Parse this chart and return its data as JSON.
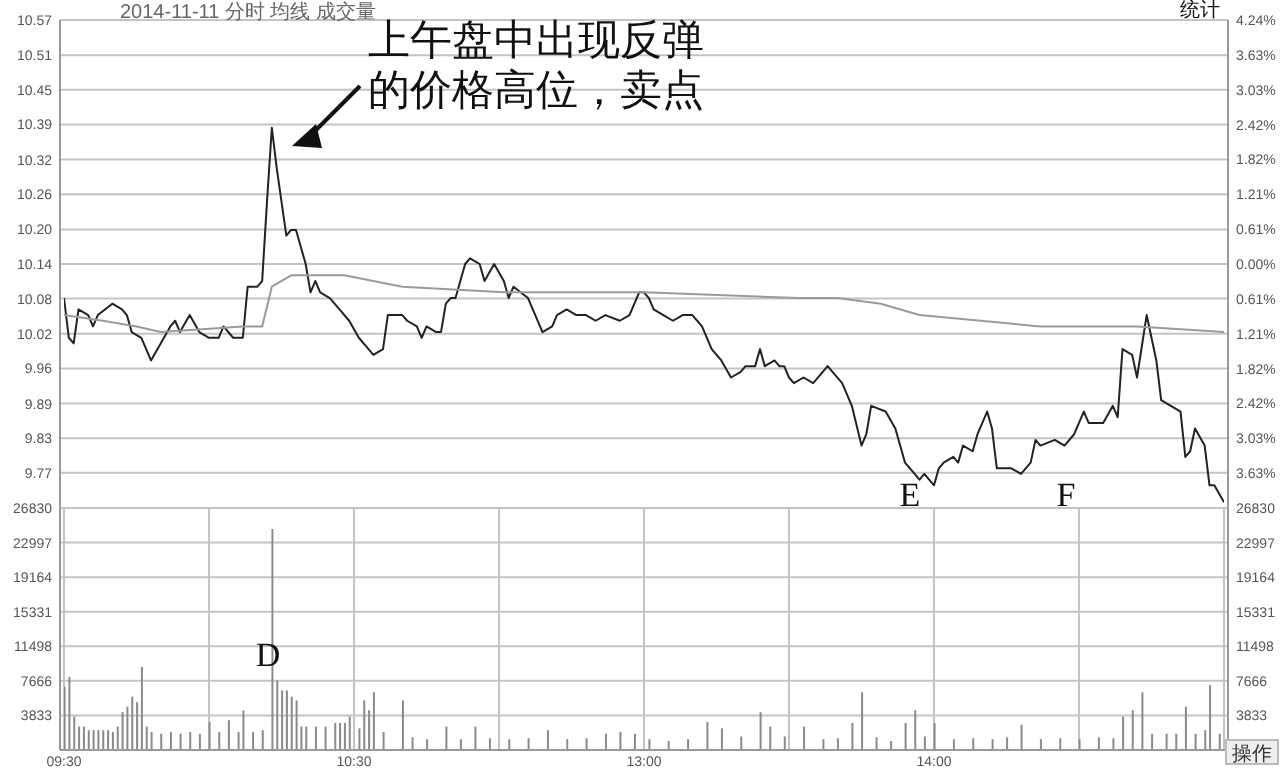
{
  "chart_data": [
    {
      "type": "line",
      "title": "2014-11-11 分时 均线 成交量",
      "categories": [
        null,
        null,
        null,
        null,
        null,
        null,
        null,
        null,
        null,
        null,
        null,
        null,
        null,
        null,
        null,
        null,
        null,
        null,
        null,
        null,
        null,
        null,
        null,
        null,
        null,
        null,
        null,
        null,
        null,
        null,
        null,
        null,
        null,
        null,
        null,
        null,
        null,
        null,
        null,
        null,
        null,
        null,
        null,
        null,
        null,
        null,
        null,
        null,
        null,
        null,
        null,
        null,
        null,
        null,
        null,
        null,
        null,
        null,
        null,
        null,
        null,
        null,
        null,
        null,
        null,
        null,
        null,
        null,
        null,
        null,
        null,
        null,
        null,
        null,
        null,
        null,
        null,
        null,
        null,
        null,
        null,
        null,
        null,
        null,
        null,
        null,
        null,
        null,
        null,
        null,
        null,
        null,
        null,
        null,
        null,
        null,
        null,
        null,
        null,
        null,
        null,
        null,
        null,
        null,
        null,
        null,
        null,
        null,
        null,
        null,
        null,
        null,
        null,
        null,
        null,
        null,
        null,
        null,
        null,
        null,
        null,
        null,
        null,
        null,
        null,
        null,
        null,
        null,
        null,
        null,
        null,
        null,
        null,
        null,
        null,
        null,
        null,
        null,
        null,
        null,
        null,
        null,
        null,
        null,
        null,
        null,
        null,
        null,
        null,
        null,
        null,
        null,
        null,
        null,
        null,
        null,
        null,
        null,
        null,
        null,
        null,
        null,
        null,
        null,
        null,
        null,
        null,
        null,
        null,
        null,
        null,
        null,
        null,
        null,
        null,
        null,
        null,
        null,
        null,
        null,
        null,
        null,
        null,
        null,
        null,
        null,
        null,
        null,
        null,
        null,
        null,
        null,
        null,
        null,
        null,
        null,
        null,
        null,
        null,
        null,
        null,
        null,
        null,
        null,
        null,
        null,
        null,
        null,
        null,
        null,
        null,
        null,
        null,
        null,
        null,
        null,
        null,
        null,
        null,
        null,
        null,
        null,
        null,
        null,
        null,
        null,
        null,
        null,
        null,
        null,
        null,
        null,
        null,
        null,
        null,
        null,
        null,
        null,
        null,
        null,
        null
      ],
      "ylim": [
        9.71,
        10.57
      ],
      "yticks": [
        {
          "value": 10.57,
          "label": "10.57"
        },
        {
          "value": 10.508,
          "label": "10.51"
        },
        {
          "value": 10.447,
          "label": "10.45"
        },
        {
          "value": 10.386,
          "label": "10.39"
        },
        {
          "value": 10.324,
          "label": "10.32"
        },
        {
          "value": 10.263,
          "label": "10.26"
        },
        {
          "value": 10.201,
          "label": "10.20"
        },
        {
          "value": 10.14,
          "label": "10.14"
        },
        {
          "value": 10.079,
          "label": "10.08"
        },
        {
          "value": 10.017,
          "label": "10.02"
        },
        {
          "value": 9.956,
          "label": "9.96"
        },
        {
          "value": 9.894,
          "label": "9.89"
        },
        {
          "value": 9.833,
          "label": "9.83"
        },
        {
          "value": 9.772,
          "label": "9.77"
        }
      ],
      "y2lim": [
        -4.24,
        4.24
      ],
      "y2ticks": [
        {
          "value": 4.24,
          "label": "4.24%"
        },
        {
          "value": 3.63,
          "label": "3.63%"
        },
        {
          "value": 3.03,
          "label": "3.03%"
        },
        {
          "value": 2.42,
          "label": "2.42%"
        },
        {
          "value": 1.82,
          "label": "1.82%"
        },
        {
          "value": 1.21,
          "label": "1.21%"
        },
        {
          "value": 0.61,
          "label": "0.61%"
        },
        {
          "value": 0,
          "label": "0.00%"
        },
        {
          "value": -0.61,
          "label": "0.61%"
        },
        {
          "value": -1.21,
          "label": "1.21%"
        },
        {
          "value": -1.82,
          "label": "1.82%"
        },
        {
          "value": -2.42,
          "label": "2.42%"
        },
        {
          "value": -3.03,
          "label": "3.03%"
        },
        {
          "value": -3.63,
          "label": "3.63%"
        }
      ],
      "grid": true,
      "tick_labels": "y",
      "line_style": "solid",
      "series": [
        {
          "color": "#222222",
          "values": [
            10.08,
            10.01,
            10.0,
            10.06,
            null,
            10.05,
            10.03,
            10.05,
            null,
            null,
            10.07,
            null,
            10.06,
            10.05,
            10.02,
            null,
            10.01,
            null,
            9.97,
            null,
            10.0,
            null,
            10.03,
            10.04,
            10.02,
            null,
            10.05,
            null,
            10.02,
            null,
            10.01,
            null,
            10.01,
            10.03,
            null,
            10.01,
            10.01,
            10.01,
            10.1,
            null,
            10.1,
            10.11,
            10.25,
            10.38,
            10.31,
            10.25,
            10.19,
            10.2,
            10.2,
            10.17,
            10.14,
            10.09,
            10.11,
            10.09,
            null,
            10.08,
            null,
            10.06,
            null,
            10.04,
            null,
            10.01,
            null,
            9.99,
            9.98,
            null,
            9.99,
            10.05,
            null,
            10.05,
            10.05,
            10.04,
            null,
            10.03,
            10.01,
            10.03,
            null,
            10.02,
            10.02,
            10.07,
            10.08,
            10.08,
            null,
            10.14,
            10.15,
            null,
            10.14,
            10.11,
            null,
            10.14,
            null,
            10.11,
            10.08,
            10.1,
            null,
            null,
            10.08,
            null,
            null,
            10.02,
            null,
            10.03,
            10.05,
            null,
            10.06,
            null,
            10.05,
            null,
            10.05,
            null,
            10.04,
            null,
            10.05,
            null,
            null,
            10.04,
            null,
            10.05,
            null,
            10.09,
            10.09,
            10.08,
            10.06,
            null,
            10.05,
            null,
            10.04,
            null,
            10.05,
            null,
            10.05,
            null,
            10.03,
            null,
            9.99,
            null,
            9.97,
            null,
            9.94,
            null,
            9.95,
            9.96,
            null,
            9.96,
            9.99,
            9.96,
            null,
            9.97,
            9.96,
            9.96,
            9.94,
            9.93,
            null,
            9.94,
            null,
            9.93,
            null,
            null,
            9.96,
            9.95,
            null,
            9.93,
            null,
            9.89,
            null,
            9.82,
            9.84,
            9.89,
            null,
            null,
            9.88,
            null,
            9.85,
            9.82,
            9.79,
            null,
            9.77,
            9.76,
            9.77,
            null,
            9.75,
            9.78,
            9.79,
            null,
            9.8,
            9.79,
            9.82,
            null,
            9.81,
            9.84,
            null,
            9.88,
            9.85,
            9.78,
            null,
            null,
            9.78,
            null,
            9.77,
            null,
            9.79,
            9.83,
            9.82,
            null,
            null,
            9.83,
            null,
            9.82,
            null,
            9.84,
            null,
            9.88,
            9.86,
            null,
            9.86,
            9.86,
            null,
            9.89,
            9.87,
            9.99,
            null,
            9.98,
            9.94,
            null,
            10.05,
            null,
            9.97,
            9.9,
            null,
            9.89,
            null,
            9.88,
            9.8,
            9.81,
            9.85,
            null,
            9.82,
            9.75,
            9.75,
            null,
            9.72
          ]
        },
        {
          "color": "#9a9a9a",
          "values": [
            10.05,
            null,
            null,
            null,
            null,
            null,
            null,
            null,
            10.04,
            null,
            null,
            null,
            null,
            null,
            null,
            10.03,
            null,
            null,
            null,
            null,
            10.02,
            null,
            null,
            null,
            null,
            null,
            null,
            null,
            null,
            null,
            null,
            null,
            null,
            null,
            null,
            null,
            null,
            10.03,
            null,
            null,
            null,
            10.03,
            null,
            10.1,
            null,
            null,
            null,
            10.12,
            null,
            null,
            null,
            null,
            null,
            null,
            null,
            null,
            null,
            null,
            10.12,
            null,
            null,
            null,
            null,
            null,
            null,
            null,
            null,
            null,
            null,
            null,
            10.1,
            null,
            null,
            null,
            null,
            null,
            null,
            null,
            null,
            null,
            null,
            null,
            null,
            null,
            null,
            null,
            null,
            null,
            null,
            null,
            null,
            10.09,
            null,
            null,
            null,
            null,
            null,
            null,
            null,
            null,
            null,
            null,
            null,
            null,
            null,
            null,
            null,
            null,
            null,
            null,
            null,
            null,
            null,
            null,
            null,
            null,
            null,
            null,
            null,
            10.09,
            10.09,
            null,
            null,
            null,
            null,
            null,
            null,
            null,
            null,
            null,
            null,
            null,
            null,
            null,
            null,
            null,
            null,
            null,
            null,
            null,
            null,
            null,
            null,
            null,
            null,
            null,
            null,
            null,
            null,
            null,
            null,
            null,
            10.08,
            null,
            null,
            null,
            null,
            null,
            null,
            null,
            10.08,
            null,
            null,
            null,
            null,
            null,
            null,
            null,
            null,
            10.07,
            null,
            null,
            null,
            null,
            null,
            null,
            null,
            10.05,
            null,
            null,
            null,
            null,
            null,
            null,
            null,
            null,
            null,
            null,
            null,
            null,
            null,
            null,
            null,
            null,
            null,
            null,
            null,
            null,
            null,
            null,
            null,
            null,
            10.03,
            null,
            null,
            null,
            null,
            null,
            null,
            null,
            null,
            null,
            null,
            null,
            null,
            null,
            null,
            null,
            null,
            null,
            null,
            null,
            10.03,
            null,
            null,
            null,
            null,
            null,
            null,
            null,
            null,
            null,
            null,
            null,
            null,
            null,
            null,
            null,
            null,
            null,
            10.02
          ]
        }
      ],
      "annotations": [
        "上午盘中出现反弹的价格高位，卖点",
        "E",
        "F",
        "统计"
      ]
    },
    {
      "type": "bar",
      "color": "#8a8a8a",
      "categories": [
        "09:30",
        null,
        null,
        null,
        null,
        null,
        null,
        null,
        null,
        null,
        null,
        null,
        null,
        null,
        null,
        null,
        null,
        null,
        null,
        null,
        null,
        null,
        null,
        null,
        null,
        null,
        null,
        null,
        null,
        null,
        null,
        null,
        null,
        null,
        null,
        null,
        null,
        null,
        null,
        null,
        null,
        null,
        null,
        null,
        null,
        null,
        null,
        null,
        null,
        null,
        null,
        null,
        null,
        null,
        null,
        null,
        null,
        null,
        null,
        null,
        "10:30",
        null,
        null,
        null,
        null,
        null,
        null,
        null,
        null,
        null,
        null,
        null,
        null,
        null,
        null,
        null,
        null,
        null,
        null,
        null,
        null,
        null,
        null,
        null,
        null,
        null,
        null,
        null,
        null,
        null,
        null,
        null,
        null,
        null,
        null,
        null,
        null,
        null,
        null,
        null,
        null,
        null,
        null,
        null,
        null,
        null,
        null,
        null,
        null,
        null,
        null,
        null,
        null,
        null,
        null,
        null,
        null,
        null,
        null,
        null,
        "13:00",
        null,
        null,
        null,
        null,
        null,
        null,
        null,
        null,
        null,
        null,
        null,
        null,
        null,
        null,
        null,
        null,
        null,
        null,
        null,
        null,
        null,
        null,
        null,
        null,
        null,
        null,
        null,
        null,
        null,
        null,
        null,
        null,
        null,
        null,
        null,
        null,
        null,
        null,
        null,
        null,
        null,
        null,
        null,
        null,
        null,
        null,
        null,
        null,
        null,
        null,
        null,
        null,
        null,
        null,
        null,
        null,
        null,
        null,
        null,
        "14:00",
        null,
        null,
        null,
        null,
        null,
        null,
        null,
        null,
        null,
        null,
        null,
        null,
        null,
        null,
        null,
        null,
        null,
        null,
        null,
        null,
        null,
        null,
        null,
        null,
        null,
        null,
        null,
        null,
        null,
        null,
        null,
        null,
        null,
        null,
        null,
        null,
        null,
        null,
        null,
        null,
        null,
        null,
        null,
        null,
        null,
        null,
        null,
        null,
        null,
        null,
        null,
        null,
        null,
        null,
        null,
        null,
        null,
        null,
        null,
        null
      ],
      "ylim": [
        0,
        26830
      ],
      "yticks": [
        3833,
        7666,
        11498,
        15331,
        19164,
        22997,
        26830
      ],
      "y2lim": [
        0,
        26830
      ],
      "y2ticks": [
        3833,
        7666,
        11498,
        15331,
        19164,
        22997,
        26830
      ],
      "grid": true,
      "values": [
        7000,
        8100,
        3700,
        2600,
        2600,
        2200,
        2200,
        2200,
        2200,
        2200,
        2000,
        2600,
        4200,
        4800,
        5900,
        5300,
        9200,
        2600,
        2000,
        null,
        1800,
        null,
        2000,
        null,
        1800,
        null,
        2000,
        null,
        1800,
        null,
        3100,
        null,
        2000,
        null,
        3300,
        null,
        2000,
        4400,
        null,
        2000,
        null,
        2200,
        null,
        24500,
        7700,
        6600,
        6600,
        5900,
        5500,
        2600,
        2600,
        null,
        2600,
        null,
        2600,
        null,
        3000,
        3000,
        3000,
        3700,
        null,
        2400,
        5500,
        4400,
        6400,
        null,
        2000,
        null,
        null,
        null,
        5500,
        null,
        1400,
        null,
        null,
        1200,
        null,
        null,
        null,
        2600,
        null,
        null,
        1200,
        null,
        null,
        2600,
        null,
        null,
        1300,
        null,
        null,
        null,
        1200,
        null,
        null,
        null,
        1300,
        null,
        null,
        null,
        2200,
        null,
        null,
        null,
        1200,
        null,
        null,
        null,
        1300,
        null,
        null,
        null,
        1800,
        null,
        null,
        2000,
        null,
        null,
        1800,
        null,
        null,
        1200,
        null,
        null,
        null,
        1000,
        null,
        null,
        null,
        1200,
        null,
        null,
        null,
        3100,
        null,
        null,
        2400,
        null,
        null,
        null,
        1500,
        null,
        null,
        null,
        4200,
        null,
        2600,
        null,
        null,
        1500,
        null,
        null,
        null,
        2600,
        null,
        null,
        null,
        1200,
        null,
        null,
        1300,
        null,
        null,
        3000,
        null,
        6400,
        null,
        null,
        1400,
        null,
        null,
        1000,
        null,
        null,
        3000,
        null,
        4400,
        null,
        1500,
        null,
        3000,
        null,
        null,
        null,
        1200,
        null,
        null,
        null,
        1300,
        null,
        null,
        null,
        1200,
        null,
        null,
        1400,
        null,
        null,
        2800,
        null,
        null,
        null,
        1200,
        null,
        null,
        null,
        1300,
        null,
        null,
        null,
        1200,
        null,
        null,
        null,
        1400,
        null,
        null,
        1300,
        null,
        3700,
        null,
        4400,
        null,
        6400,
        null,
        1800,
        null,
        null,
        1800,
        null,
        1800,
        null,
        4800,
        null,
        1800,
        null,
        2200,
        7200,
        null,
        1800,
        null
      ],
      "annotations": [
        "D",
        "操作"
      ]
    }
  ]
}
